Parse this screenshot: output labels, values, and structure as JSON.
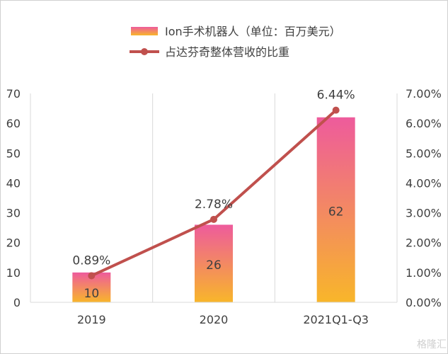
{
  "chart_data": {
    "type": "bar+line",
    "categories": [
      "2019",
      "2020",
      "2021Q1-Q3"
    ],
    "series": [
      {
        "name": "Ion手术机器人（单位：百万美元）",
        "type": "bar",
        "axis": "left",
        "values": [
          10,
          26,
          62
        ],
        "data_labels": [
          "10",
          "26",
          "62"
        ],
        "color_top": "#ee5b9c",
        "color_bottom": "#f8b62a"
      },
      {
        "name": "占达芬奇整体营收的比重",
        "type": "line",
        "axis": "right",
        "values": [
          0.89,
          2.78,
          6.44
        ],
        "data_labels": [
          "0.89%",
          "2.78%",
          "6.44%"
        ],
        "color": "#c0504d"
      }
    ],
    "left_axis": {
      "ylim": [
        0,
        70
      ],
      "ticks": [
        "0",
        "10",
        "20",
        "30",
        "40",
        "50",
        "60",
        "70"
      ]
    },
    "right_axis": {
      "ylim": [
        0,
        7
      ],
      "ticks": [
        "0.00%",
        "1.00%",
        "2.00%",
        "3.00%",
        "4.00%",
        "5.00%",
        "6.00%",
        "7.00%"
      ]
    },
    "grid": "vertical",
    "legend": "top"
  },
  "watermark": "格隆汇"
}
